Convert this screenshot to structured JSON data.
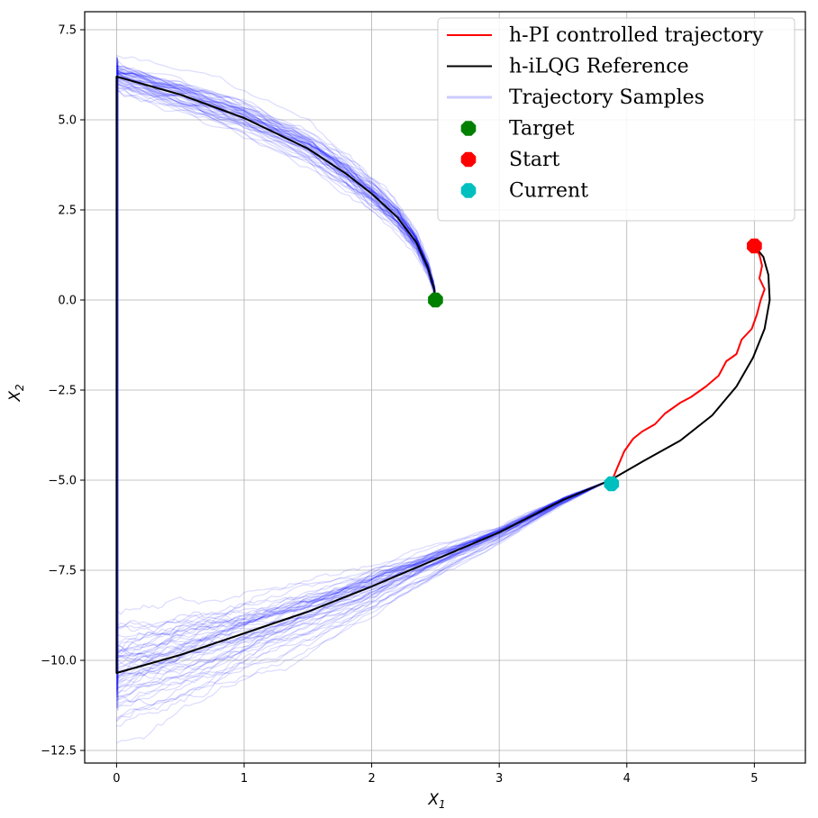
{
  "chart_data": {
    "type": "line",
    "xlabel_main": "X",
    "xlabel_sub": "1",
    "ylabel_main": "X",
    "ylabel_sub": "2",
    "xlim": [
      -0.25,
      5.4
    ],
    "ylim": [
      -12.85,
      8.0
    ],
    "x_ticks": [
      {
        "value": 0,
        "label": "0"
      },
      {
        "value": 1,
        "label": "1"
      },
      {
        "value": 2,
        "label": "2"
      },
      {
        "value": 3,
        "label": "3"
      },
      {
        "value": 4,
        "label": "4"
      },
      {
        "value": 5,
        "label": "5"
      }
    ],
    "y_ticks": [
      {
        "value": 7.5,
        "label": "7.5"
      },
      {
        "value": 5.0,
        "label": "5.0"
      },
      {
        "value": 2.5,
        "label": "2.5"
      },
      {
        "value": 0.0,
        "label": "0.0"
      },
      {
        "value": -2.5,
        "label": "−2.5"
      },
      {
        "value": -5.0,
        "label": "−5.0"
      },
      {
        "value": -7.5,
        "label": "−7.5"
      },
      {
        "value": -10.0,
        "label": "−10.0"
      },
      {
        "value": -12.5,
        "label": "−12.5"
      }
    ],
    "grid": true,
    "legend_position": "top-right",
    "colors": {
      "controlled": "#ff0000",
      "reference": "#000000",
      "samples": "#0000ff",
      "target": "#008000",
      "start": "#ff0000",
      "current": "#00bfbf"
    },
    "legend": [
      {
        "key": "controlled",
        "label": "h-PI controlled trajectory",
        "kind": "line"
      },
      {
        "key": "reference",
        "label": "h-iLQG Reference",
        "kind": "line"
      },
      {
        "key": "samples",
        "label": "Trajectory Samples",
        "kind": "faint-line"
      },
      {
        "key": "target",
        "label": "Target",
        "kind": "marker"
      },
      {
        "key": "start",
        "label": "Start",
        "kind": "marker"
      },
      {
        "key": "current",
        "label": "Current",
        "kind": "marker"
      }
    ],
    "series": [
      {
        "name": "h-iLQG Reference",
        "points": [
          [
            5.0,
            1.5
          ],
          [
            5.07,
            1.2
          ],
          [
            5.11,
            0.7
          ],
          [
            5.12,
            0.0
          ],
          [
            5.08,
            -0.8
          ],
          [
            4.99,
            -1.6
          ],
          [
            4.86,
            -2.4
          ],
          [
            4.67,
            -3.2
          ],
          [
            4.42,
            -3.9
          ],
          [
            4.14,
            -4.45
          ],
          [
            3.87,
            -5.0
          ],
          [
            3.5,
            -5.55
          ],
          [
            3.0,
            -6.45
          ],
          [
            2.5,
            -7.2
          ],
          [
            2.0,
            -7.95
          ],
          [
            1.5,
            -8.65
          ],
          [
            1.0,
            -9.25
          ],
          [
            0.5,
            -9.85
          ],
          [
            0.0,
            -10.35
          ],
          [
            0.0,
            6.2
          ],
          [
            0.5,
            5.7
          ],
          [
            1.0,
            5.05
          ],
          [
            1.5,
            4.2
          ],
          [
            1.8,
            3.5
          ],
          [
            2.0,
            2.95
          ],
          [
            2.2,
            2.3
          ],
          [
            2.35,
            1.6
          ],
          [
            2.44,
            0.9
          ],
          [
            2.49,
            0.3
          ],
          [
            2.5,
            0.0
          ]
        ]
      },
      {
        "name": "h-PI controlled trajectory",
        "points": [
          [
            5.0,
            1.5
          ],
          [
            5.04,
            1.25
          ],
          [
            5.06,
            0.95
          ],
          [
            5.04,
            0.6
          ],
          [
            5.08,
            0.3
          ],
          [
            5.05,
            0.0
          ],
          [
            5.02,
            -0.4
          ],
          [
            4.98,
            -0.8
          ],
          [
            4.9,
            -1.1
          ],
          [
            4.86,
            -1.5
          ],
          [
            4.78,
            -1.7
          ],
          [
            4.72,
            -2.1
          ],
          [
            4.62,
            -2.4
          ],
          [
            4.5,
            -2.7
          ],
          [
            4.42,
            -2.85
          ],
          [
            4.3,
            -3.15
          ],
          [
            4.22,
            -3.45
          ],
          [
            4.12,
            -3.65
          ],
          [
            4.05,
            -3.85
          ],
          [
            3.98,
            -4.2
          ],
          [
            3.95,
            -4.45
          ],
          [
            3.92,
            -4.7
          ],
          [
            3.88,
            -5.05
          ]
        ]
      }
    ],
    "markers": [
      {
        "name": "Target",
        "x": 2.5,
        "y": 0.0
      },
      {
        "name": "Start",
        "x": 5.0,
        "y": 1.5
      },
      {
        "name": "Current",
        "x": 3.88,
        "y": -5.1
      }
    ]
  }
}
